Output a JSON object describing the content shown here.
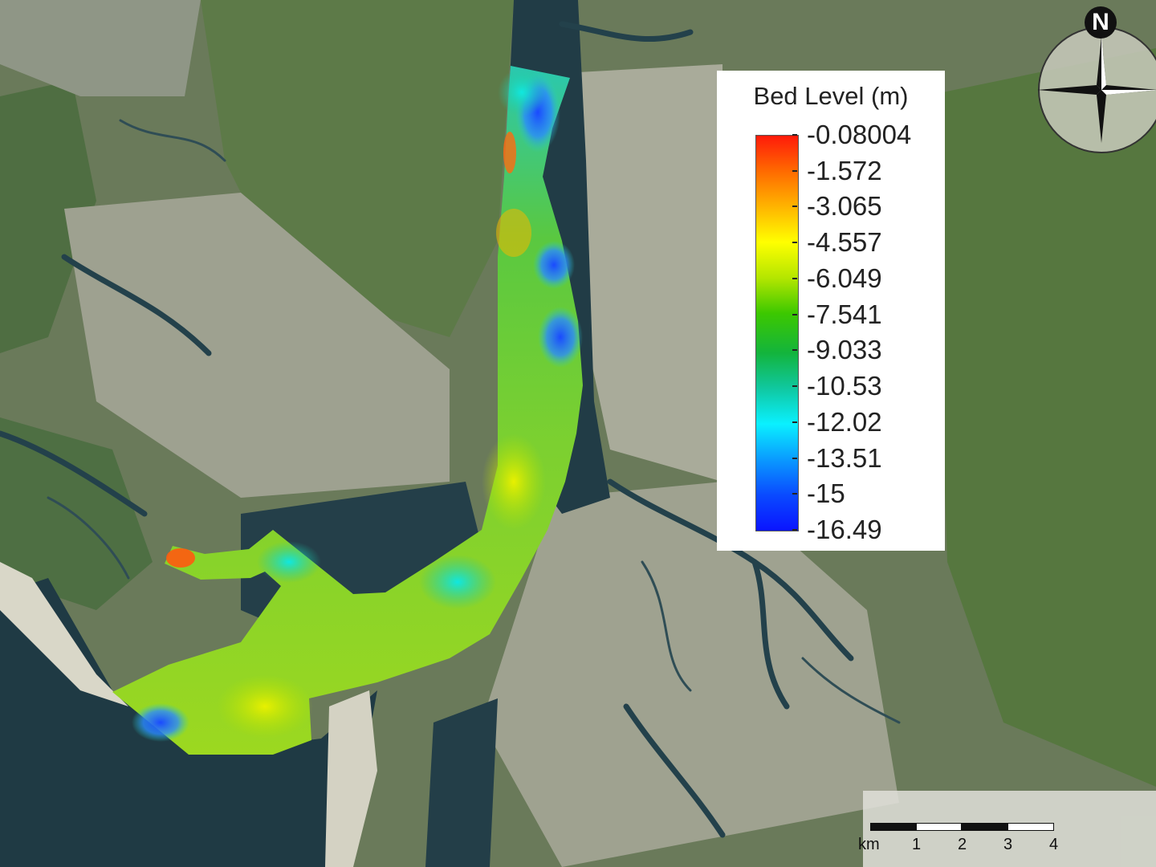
{
  "legend": {
    "title": "Bed Level (m)",
    "labels": [
      "-0.08004",
      "-1.572",
      "-3.065",
      "-4.557",
      "-6.049",
      "-7.541",
      "-9.033",
      "-10.53",
      "-12.02",
      "-13.51",
      "-15",
      "-16.49"
    ],
    "colors": [
      "#ff1a0a",
      "#ff6a00",
      "#ffb400",
      "#ffff00",
      "#b4e600",
      "#3cc800",
      "#13b43c",
      "#10c8a0",
      "#0af0ff",
      "#0a9aff",
      "#0a4aff",
      "#0a14ff"
    ]
  },
  "north_arrow": {
    "letter": "N"
  },
  "scale_bar": {
    "unit": "km",
    "ticks": [
      "1",
      "2",
      "3",
      "4"
    ]
  },
  "colors": {
    "water": "#1f3a44",
    "land_green": "#5a7a45",
    "mudflat": "#a8aa98",
    "sand": "#d8d6c8"
  }
}
